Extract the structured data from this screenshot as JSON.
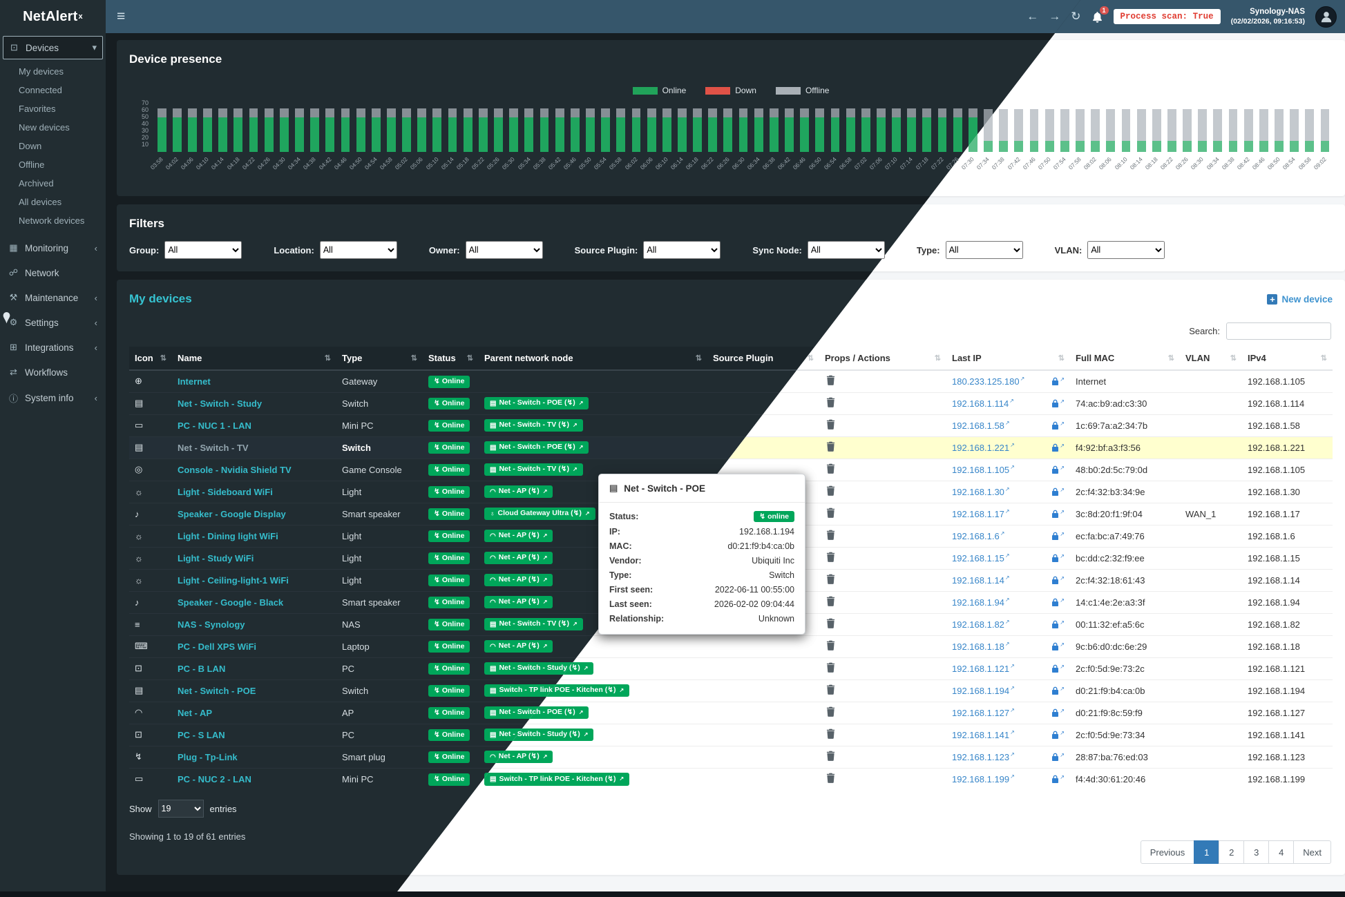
{
  "header": {
    "logo": "NetAlert",
    "logo_sup": "x",
    "notif_count": "1",
    "process_scan": "Process scan: True",
    "server_name": "Synology-NAS",
    "server_time": "(02/02/2026, 09:16:53)"
  },
  "glyphs": {
    "menu": "≡",
    "back": "←",
    "forward": "→",
    "refresh": "↻",
    "sort": "⇅",
    "external": "↗",
    "power": "↯",
    "chevron_down": "▾",
    "chevron_left": "‹",
    "plus": "+"
  },
  "sidebar_glyphs": {
    "devices": "⊡",
    "monitoring": "▦",
    "network": "☍",
    "maintenance": "⚒",
    "settings": "⚙",
    "integrations": "⊞",
    "workflows": "⇄",
    "system-info": "ⓘ"
  },
  "device_glyphs": {
    "globe": "⊕",
    "switch": "▤",
    "minipc": "▭",
    "console": "◎",
    "light": "☼",
    "speaker": "♪",
    "nas": "≡",
    "laptop": "⌨",
    "desktop": "⊡",
    "wifi": "◠",
    "plug": "↯",
    "site": "♁"
  },
  "sidebar": {
    "sections": [
      {
        "label": "Devices",
        "icon_key": "devices",
        "chevron": "down",
        "active": true,
        "children": [
          "My devices",
          "Connected",
          "Favorites",
          "New devices",
          "Down",
          "Offline",
          "Archived",
          "All devices",
          "Network devices"
        ]
      },
      {
        "label": "Monitoring",
        "icon_key": "monitoring",
        "chevron": "left"
      },
      {
        "label": "Network",
        "icon_key": "network"
      },
      {
        "label": "Maintenance",
        "icon_key": "maintenance",
        "chevron": "left"
      },
      {
        "label": "Settings",
        "icon_key": "settings",
        "chevron": "left"
      },
      {
        "label": "Integrations",
        "icon_key": "integrations",
        "chevron": "left"
      },
      {
        "label": "Workflows",
        "icon_key": "workflows"
      },
      {
        "label": "System info",
        "icon_key": "system-info",
        "chevron": "left"
      }
    ]
  },
  "presence": {
    "title": "Device presence",
    "legend": [
      {
        "label": "Online",
        "color": "#21a35a"
      },
      {
        "label": "Down",
        "color": "#e05247"
      },
      {
        "label": "Offline",
        "color": "#a9b0b6"
      }
    ]
  },
  "chart_data": {
    "type": "bar",
    "stacked": true,
    "title": "Device presence",
    "x": [
      "03:58",
      "04:02",
      "04:06",
      "04:10",
      "04:14",
      "04:18",
      "04:22",
      "04:26",
      "04:30",
      "04:34",
      "04:38",
      "04:42",
      "04:46",
      "04:50",
      "04:54",
      "04:58",
      "05:02",
      "05:06",
      "05:10",
      "05:14",
      "05:18",
      "05:22",
      "05:26",
      "05:30",
      "05:34",
      "05:38",
      "05:42",
      "05:46",
      "05:50",
      "05:54",
      "05:58",
      "06:02",
      "06:06",
      "06:10",
      "06:14",
      "06:18",
      "06:22",
      "06:26",
      "06:30",
      "06:34",
      "06:38",
      "06:42",
      "06:46",
      "06:50",
      "06:54",
      "06:58",
      "07:02",
      "07:06",
      "07:10",
      "07:14",
      "07:18",
      "07:22",
      "07:26",
      "07:30",
      "07:34",
      "07:38",
      "07:42",
      "07:46",
      "07:50",
      "07:54",
      "07:58",
      "08:02",
      "08:06",
      "08:10",
      "08:14",
      "08:18",
      "08:22",
      "08:26",
      "08:30",
      "08:34",
      "08:38",
      "08:42",
      "08:46",
      "08:50",
      "08:54",
      "08:58",
      "09:02"
    ],
    "series": [
      {
        "name": "Online",
        "color": "#1fa55e",
        "values": [
          50,
          50,
          50,
          50,
          50,
          50,
          50,
          50,
          50,
          50,
          50,
          50,
          50,
          50,
          50,
          50,
          50,
          50,
          50,
          50,
          50,
          50,
          50,
          50,
          50,
          50,
          50,
          50,
          50,
          50,
          50,
          50,
          50,
          50,
          50,
          50,
          50,
          50,
          50,
          50,
          50,
          50,
          50,
          50,
          50,
          50,
          50,
          50,
          50,
          50,
          50,
          50,
          50,
          50,
          16,
          16,
          16,
          16,
          16,
          16,
          16,
          16,
          16,
          16,
          16,
          16,
          16,
          16,
          16,
          16,
          16,
          16,
          16,
          16,
          16,
          16,
          16
        ]
      },
      {
        "name": "Down",
        "color": "#d9534f",
        "values": [
          0,
          0,
          0,
          0,
          0,
          0,
          0,
          0,
          0,
          0,
          0,
          0,
          0,
          0,
          0,
          0,
          0,
          0,
          0,
          0,
          0,
          0,
          0,
          0,
          0,
          0,
          0,
          0,
          0,
          0,
          0,
          0,
          0,
          0,
          0,
          0,
          0,
          0,
          0,
          0,
          0,
          0,
          0,
          0,
          0,
          0,
          0,
          0,
          0,
          0,
          0,
          0,
          0,
          0,
          0,
          0,
          0,
          0,
          0,
          0,
          0,
          0,
          0,
          0,
          0,
          0,
          0,
          0,
          0,
          0,
          0,
          0,
          0,
          0,
          0,
          0,
          0
        ]
      },
      {
        "name": "Offline",
        "color": "#878f95",
        "values": [
          13,
          13,
          13,
          13,
          13,
          13,
          13,
          13,
          13,
          13,
          13,
          13,
          13,
          13,
          13,
          13,
          13,
          13,
          13,
          13,
          13,
          13,
          13,
          13,
          13,
          13,
          13,
          13,
          13,
          13,
          13,
          13,
          13,
          13,
          13,
          13,
          13,
          13,
          13,
          13,
          13,
          13,
          13,
          13,
          13,
          13,
          13,
          13,
          13,
          13,
          13,
          13,
          13,
          13,
          46,
          46,
          46,
          46,
          46,
          46,
          46,
          46,
          46,
          46,
          46,
          46,
          46,
          46,
          46,
          46,
          46,
          46,
          46,
          46,
          46,
          46,
          46
        ]
      }
    ],
    "ylim": [
      0,
      70
    ],
    "yticks": [
      70,
      60,
      50,
      40,
      30,
      20,
      10
    ],
    "legend_position": "top"
  },
  "filters": {
    "title": "Filters",
    "fields": [
      {
        "label": "Group:",
        "value": "All"
      },
      {
        "label": "Location:",
        "value": "All"
      },
      {
        "label": "Owner:",
        "value": "All"
      },
      {
        "label": "Source Plugin:",
        "value": "All"
      },
      {
        "label": "Sync Node:",
        "value": "All"
      },
      {
        "label": "Type:",
        "value": "All"
      },
      {
        "label": "VLAN:",
        "value": "All"
      }
    ]
  },
  "devices": {
    "title": "My devices",
    "new_device_label": "New device",
    "search_label": "Search:",
    "columns": [
      "Icon",
      "Name",
      "Type",
      "Status",
      "Parent network node",
      "Source Plugin",
      "Props / Actions",
      "Last IP",
      "Full MAC",
      "VLAN",
      "IPv4"
    ],
    "rows": [
      {
        "icon_key": "globe",
        "name": "Internet",
        "type": "Gateway",
        "status": "Online",
        "parent": null,
        "source_plugin": "",
        "last_ip": "180.233.125.180",
        "mac": "Internet",
        "vlan": "",
        "ipv4": "192.168.1.105",
        "highlighted": false
      },
      {
        "icon_key": "switch",
        "name": "Net - Switch - Study",
        "type": "Switch",
        "status": "Online",
        "parent": {
          "label": "Net - Switch - POE",
          "icon_key": "switch"
        },
        "source_plugin": "",
        "last_ip": "192.168.1.114",
        "mac": "74:ac:b9:ad:c3:30",
        "vlan": "",
        "ipv4": "192.168.1.114",
        "highlighted": false
      },
      {
        "icon_key": "minipc",
        "name": "PC - NUC 1 - LAN",
        "type": "Mini PC",
        "status": "Online",
        "parent": {
          "label": "Net - Switch - TV",
          "icon_key": "switch"
        },
        "source_plugin": "",
        "last_ip": "192.168.1.58",
        "mac": "1c:69:7a:a2:34:7b",
        "vlan": "",
        "ipv4": "192.168.1.58",
        "highlighted": false
      },
      {
        "icon_key": "switch",
        "name": "Net - Switch - TV",
        "type": "Switch",
        "status": "Online",
        "parent": {
          "label": "Net - Switch - POE",
          "icon_key": "switch"
        },
        "source_plugin": "",
        "last_ip": "192.168.1.221",
        "mac": "f4:92:bf:a3:f3:56",
        "vlan": "",
        "ipv4": "192.168.1.221",
        "highlighted": true
      },
      {
        "icon_key": "console",
        "name": "Console - Nvidia Shield TV",
        "type": "Game Console",
        "status": "Online",
        "parent": {
          "label": "Net - Switch - TV",
          "icon_key": "switch"
        },
        "source_plugin": "",
        "last_ip": "192.168.1.105",
        "mac": "48:b0:2d:5c:79:0d",
        "vlan": "",
        "ipv4": "192.168.1.105",
        "highlighted": false
      },
      {
        "icon_key": "light",
        "name": "Light - Sideboard WiFi",
        "type": "Light",
        "status": "Online",
        "parent": {
          "label": "Net - AP",
          "icon_key": "wifi"
        },
        "source_plugin": "",
        "last_ip": "192.168.1.30",
        "mac": "2c:f4:32:b3:34:9e",
        "vlan": "",
        "ipv4": "192.168.1.30",
        "highlighted": false
      },
      {
        "icon_key": "speaker",
        "name": "Speaker - Google Display",
        "type": "Smart speaker",
        "status": "Online",
        "parent": {
          "label": "Cloud Gateway Ultra",
          "icon_key": "site"
        },
        "source_plugin": "",
        "last_ip": "192.168.1.17",
        "mac": "3c:8d:20:f1:9f:04",
        "vlan": "WAN_1",
        "ipv4": "192.168.1.17",
        "highlighted": false
      },
      {
        "icon_key": "light",
        "name": "Light - Dining light WiFi",
        "type": "Light",
        "status": "Online",
        "parent": {
          "label": "Net - AP",
          "icon_key": "wifi"
        },
        "source_plugin": "",
        "last_ip": "192.168.1.6",
        "mac": "ec:fa:bc:a7:49:76",
        "vlan": "",
        "ipv4": "192.168.1.6",
        "highlighted": false
      },
      {
        "icon_key": "light",
        "name": "Light - Study WiFi",
        "type": "Light",
        "status": "Online",
        "parent": {
          "label": "Net - AP",
          "icon_key": "wifi"
        },
        "source_plugin": "",
        "last_ip": "192.168.1.15",
        "mac": "bc:dd:c2:32:f9:ee",
        "vlan": "",
        "ipv4": "192.168.1.15",
        "highlighted": false
      },
      {
        "icon_key": "light",
        "name": "Light - Ceiling-light-1 WiFi",
        "type": "Light",
        "status": "Online",
        "parent": {
          "label": "Net - AP",
          "icon_key": "w wifi"
        },
        "source_plugin": "",
        "last_ip": "192.168.1.14",
        "mac": "2c:f4:32:18:61:43",
        "vlan": "",
        "ipv4": "192.168.1.14",
        "highlighted": false
      },
      {
        "icon_key": "speaker",
        "name": "Speaker - Google - Black",
        "type": "Smart speaker",
        "status": "Online",
        "parent": {
          "label": "Net - AP",
          "icon_key": "wifi"
        },
        "source_plugin": "",
        "last_ip": "192.168.1.94",
        "mac": "14:c1:4e:2e:a3:3f",
        "vlan": "",
        "ipv4": "192.168.1.94",
        "highlighted": false
      },
      {
        "icon_key": "nas",
        "name": "NAS - Synology",
        "type": "NAS",
        "status": "Online",
        "parent": {
          "label": "Net - Switch - TV",
          "icon_key": "switch"
        },
        "source_plugin": "",
        "last_ip": "192.168.1.82",
        "mac": "00:11:32:ef:a5:6c",
        "vlan": "",
        "ipv4": "192.168.1.82",
        "highlighted": false
      },
      {
        "icon_key": "laptop",
        "name": "PC - Dell XPS WiFi",
        "type": "Laptop",
        "status": "Online",
        "parent": {
          "label": "Net - AP",
          "icon_key": "wifi"
        },
        "source_plugin": "",
        "last_ip": "192.168.1.18",
        "mac": "9c:b6:d0:dc:6e:29",
        "vlan": "",
        "ipv4": "192.168.1.18",
        "highlighted": false
      },
      {
        "icon_key": "desktop",
        "name": "PC - B LAN",
        "type": "PC",
        "status": "Online",
        "parent": {
          "label": "Net - Switch - Study",
          "icon_key": "switch"
        },
        "source_plugin": "",
        "last_ip": "192.168.1.121",
        "mac": "2c:f0:5d:9e:73:2c",
        "vlan": "",
        "ipv4": "192.168.1.121",
        "highlighted": false
      },
      {
        "icon_key": "switch",
        "name": "Net - Switch - POE",
        "type": "Switch",
        "status": "Online",
        "parent": {
          "label": "Switch - TP link POE - Kitchen",
          "icon_key": "switch"
        },
        "source_plugin": "",
        "last_ip": "192.168.1.194",
        "mac": "d0:21:f9:b4:ca:0b",
        "vlan": "",
        "ipv4": "192.168.1.194",
        "highlighted": false
      },
      {
        "icon_key": "wifi",
        "name": "Net - AP",
        "type": "AP",
        "status": "Online",
        "parent": {
          "label": "Net - Switch - POE",
          "icon_key": "switch"
        },
        "source_plugin": "",
        "last_ip": "192.168.1.127",
        "mac": "d0:21:f9:8c:59:f9",
        "vlan": "",
        "ipv4": "192.168.1.127",
        "highlighted": false
      },
      {
        "icon_key": "desktop",
        "name": "PC - S LAN",
        "type": "PC",
        "status": "Online",
        "parent": {
          "label": "Net - Switch - Study",
          "icon_key": "switch"
        },
        "source_plugin": "",
        "last_ip": "192.168.1.141",
        "mac": "2c:f0:5d:9e:73:34",
        "vlan": "",
        "ipv4": "192.168.1.141",
        "highlighted": false
      },
      {
        "icon_key": "plug",
        "name": "Plug - Tp-Link",
        "type": "Smart plug",
        "status": "Online",
        "parent": {
          "label": "Net - AP",
          "icon_key": "wifi"
        },
        "source_plugin": "",
        "last_ip": "192.168.1.123",
        "mac": "28:87:ba:76:ed:03",
        "vlan": "",
        "ipv4": "192.168.1.123",
        "highlighted": false
      },
      {
        "icon_key": "minipc",
        "name": "PC - NUC 2 - LAN",
        "type": "Mini PC",
        "status": "Online",
        "parent": {
          "label": "Switch - TP link POE - Kitchen",
          "icon_key": "switch"
        },
        "source_plugin": "",
        "last_ip": "192.168.1.199",
        "mac": "f4:4d:30:61:20:46",
        "vlan": "",
        "ipv4": "192.168.1.199",
        "highlighted": false
      }
    ],
    "show_label": "Show",
    "entries_value": "19",
    "entries_label": "entries",
    "summary": "Showing 1 to 19 of 61 entries",
    "pagination": {
      "previous": "Previous",
      "pages": [
        "1",
        "2",
        "3",
        "4"
      ],
      "active_page": "1",
      "next": "Next"
    }
  },
  "tooltip": {
    "title": "Net - Switch - POE",
    "rows": [
      {
        "label": "Status:",
        "value": "online",
        "badge": true
      },
      {
        "label": "IP:",
        "value": "192.168.1.194"
      },
      {
        "label": "MAC:",
        "value": "d0:21:f9:b4:ca:0b"
      },
      {
        "label": "Vendor:",
        "value": "Ubiquiti Inc"
      },
      {
        "label": "Type:",
        "value": "Switch"
      },
      {
        "label": "First seen:",
        "value": "2022-06-11 00:55:00"
      },
      {
        "label": "Last seen:",
        "value": "2026-02-02 09:04:44"
      },
      {
        "label": "Relationship:",
        "value": "Unknown"
      }
    ]
  }
}
